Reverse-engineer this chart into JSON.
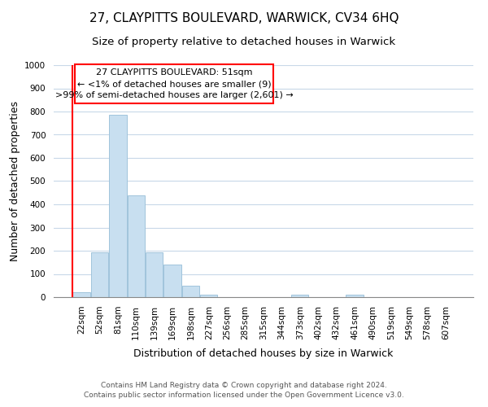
{
  "title": "27, CLAYPITTS BOULEVARD, WARWICK, CV34 6HQ",
  "subtitle": "Size of property relative to detached houses in Warwick",
  "xlabel": "Distribution of detached houses by size in Warwick",
  "ylabel": "Number of detached properties",
  "bar_color": "#c8dff0",
  "bar_edge_color": "#a0c4dc",
  "categories": [
    "22sqm",
    "52sqm",
    "81sqm",
    "110sqm",
    "139sqm",
    "169sqm",
    "198sqm",
    "227sqm",
    "256sqm",
    "285sqm",
    "315sqm",
    "344sqm",
    "373sqm",
    "402sqm",
    "432sqm",
    "461sqm",
    "490sqm",
    "519sqm",
    "549sqm",
    "578sqm",
    "607sqm"
  ],
  "values": [
    20,
    193,
    785,
    440,
    193,
    140,
    50,
    10,
    0,
    0,
    0,
    0,
    10,
    0,
    0,
    10,
    0,
    0,
    0,
    0,
    0
  ],
  "ylim": [
    0,
    1000
  ],
  "yticks": [
    0,
    100,
    200,
    300,
    400,
    500,
    600,
    700,
    800,
    900,
    1000
  ],
  "annotation_line1": "27 CLAYPITTS BOULEVARD: 51sqm",
  "annotation_line2": "← <1% of detached houses are smaller (9)",
  "annotation_line3": ">99% of semi-detached houses are larger (2,601) →",
  "footer_text": "Contains HM Land Registry data © Crown copyright and database right 2024.\nContains public sector information licensed under the Open Government Licence v3.0.",
  "background_color": "#ffffff",
  "grid_color": "#c8d8e8",
  "title_fontsize": 11,
  "subtitle_fontsize": 9.5,
  "axis_label_fontsize": 9,
  "tick_fontsize": 7.5,
  "footer_fontsize": 6.5
}
